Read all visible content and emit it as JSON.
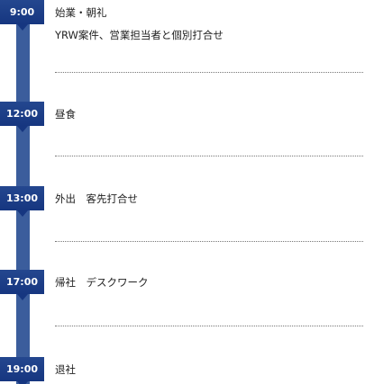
{
  "schedule": {
    "items": [
      {
        "time": "9:00",
        "lines": [
          "始業・朝礼",
          "YRW案件、営業担当者と個別打合せ"
        ]
      },
      {
        "time": "12:00",
        "lines": [
          "昼食"
        ]
      },
      {
        "time": "13:00",
        "lines": [
          "外出　客先打合せ"
        ]
      },
      {
        "time": "17:00",
        "lines": [
          "帰社　デスクワーク"
        ]
      },
      {
        "time": "19:00",
        "lines": [
          "退社"
        ]
      }
    ]
  }
}
